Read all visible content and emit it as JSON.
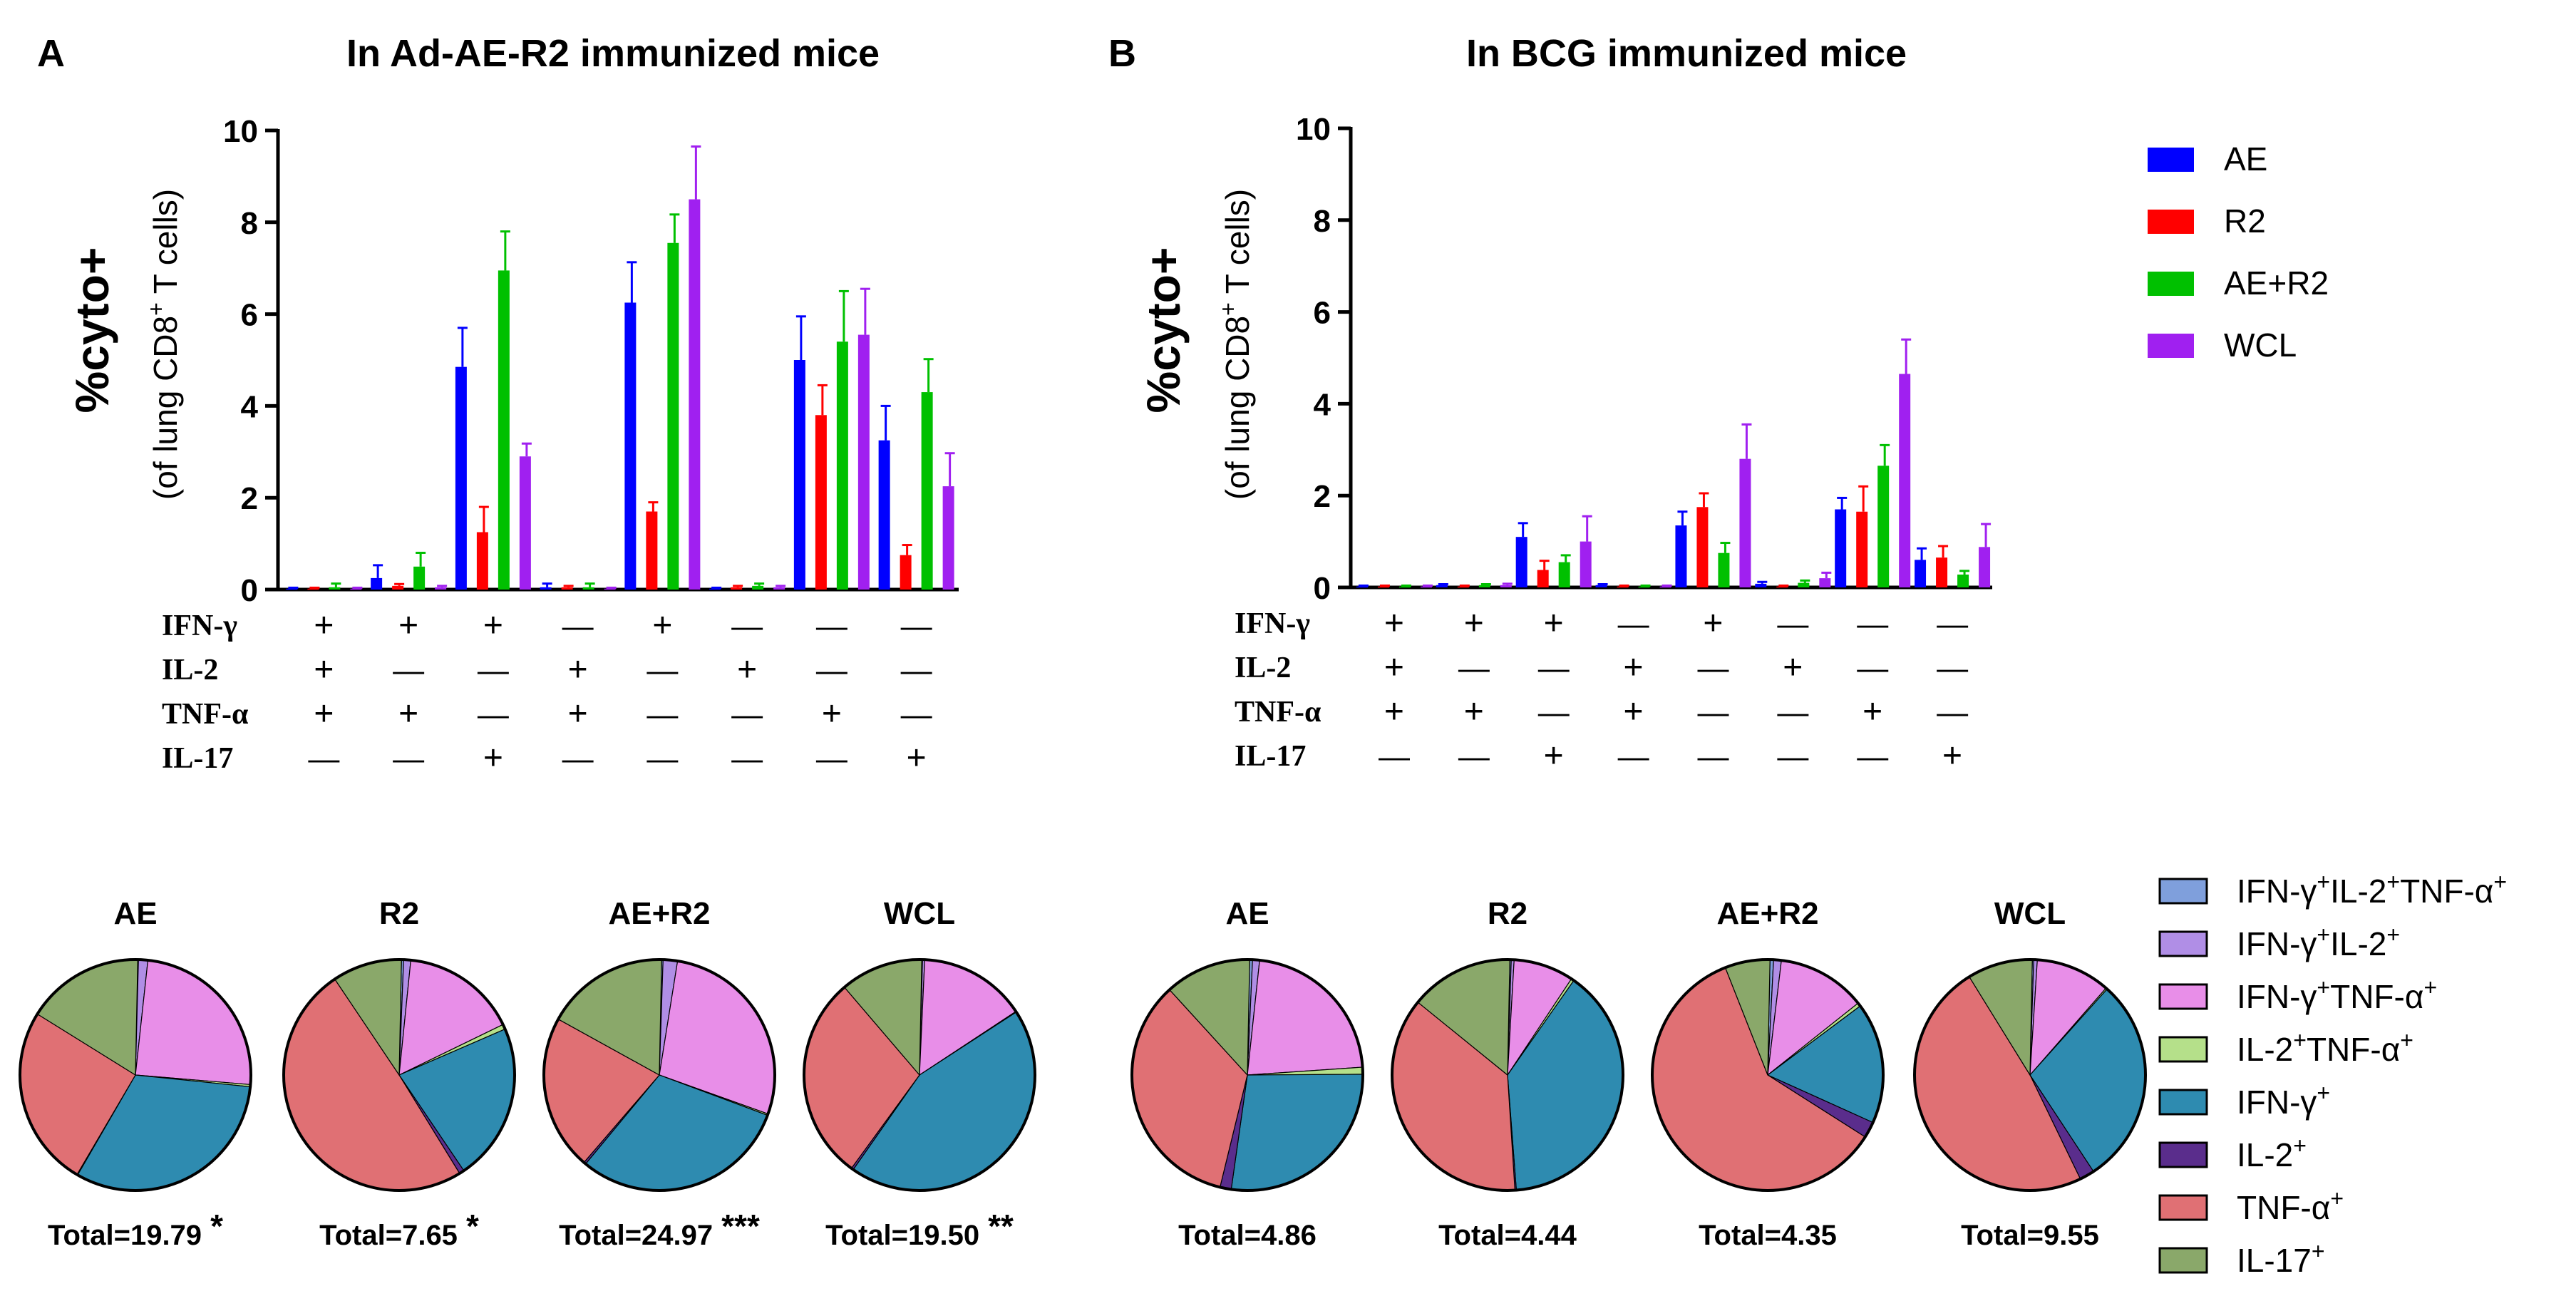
{
  "panels": [
    {
      "label": "A",
      "title": "In Ad-AE-R2 immunized mice",
      "ylabel_main": "%cyto+",
      "ylabel_sub": "(of lung CD8",
      "ylabel_sup": "+",
      "ylabel_end": " T cells)"
    },
    {
      "label": "B",
      "title": "In BCG immunized mice",
      "ylabel_main": "%cyto+",
      "ylabel_sub": "(of lung CD8",
      "ylabel_sup": "+",
      "ylabel_end": " T cells)"
    }
  ],
  "marker_rows": [
    "IFN-γ",
    "IL-2",
    "TNF-α",
    "IL-17"
  ],
  "marker_patterns": [
    [
      "+",
      "+",
      "+",
      "—"
    ],
    [
      "+",
      "—",
      "+",
      "—"
    ],
    [
      "+",
      "—",
      "—",
      "+"
    ],
    [
      "—",
      "+",
      "+",
      "—"
    ],
    [
      "+",
      "—",
      "—",
      "—"
    ],
    [
      "—",
      "+",
      "—",
      "—"
    ],
    [
      "—",
      "—",
      "+",
      "—"
    ],
    [
      "—",
      "—",
      "—",
      "+"
    ]
  ],
  "colors": {
    "AE": "#0000ff",
    "R2": "#ff0000",
    "AE+R2": "#00c000",
    "WCL": "#a020f0",
    "pie": [
      "#7f9fdc",
      "#b08ee6",
      "#e88ee8",
      "#b5e08a",
      "#2e8bb0",
      "#5a2d8c",
      "#e07074",
      "#8aa86a"
    ]
  },
  "chart_data": [
    {
      "type": "bar",
      "panel": "A",
      "title": "In Ad-AE-R2 immunized mice",
      "ylabel": "%cyto+ (of lung CD8+ T cells)",
      "ylim": [
        0,
        10
      ],
      "yticks": [
        "0",
        "2",
        "4",
        "6",
        "8",
        "10"
      ],
      "categories": [
        "IFN-γ+IL-2+TNF-α+",
        "IFN-γ+IL-2+",
        "IFN-γ+TNF-α+",
        "IL-2+TNF-α+",
        "IFN-γ+",
        "IL-2+",
        "TNF-α+",
        "IL-17+"
      ],
      "series": [
        {
          "name": "AE",
          "values": [
            0.02,
            0.25,
            4.85,
            0.05,
            6.25,
            0.02,
            5.0,
            3.25
          ],
          "errors": [
            0.02,
            0.28,
            0.85,
            0.08,
            0.88,
            0.02,
            0.95,
            0.75
          ]
        },
        {
          "name": "R2",
          "values": [
            0.02,
            0.08,
            1.25,
            0.05,
            1.7,
            0.05,
            3.8,
            0.75
          ],
          "errors": [
            0.02,
            0.04,
            0.55,
            0.03,
            0.2,
            0.03,
            0.65,
            0.22
          ]
        },
        {
          "name": "AE+R2",
          "values": [
            0.05,
            0.5,
            6.95,
            0.05,
            7.55,
            0.08,
            5.4,
            4.3
          ],
          "errors": [
            0.08,
            0.3,
            0.85,
            0.08,
            0.62,
            0.05,
            1.1,
            0.72
          ]
        },
        {
          "name": "WCL",
          "values": [
            0.02,
            0.05,
            2.9,
            0.02,
            8.5,
            0.05,
            5.55,
            2.25
          ],
          "errors": [
            0.02,
            0.03,
            0.28,
            0.02,
            1.15,
            0.03,
            1.0,
            0.72
          ]
        }
      ]
    },
    {
      "type": "bar",
      "panel": "B",
      "title": "In BCG immunized mice",
      "ylabel": "%cyto+ (of lung CD8+ T cells)",
      "ylim": [
        0,
        10
      ],
      "yticks": [
        "0",
        "2",
        "4",
        "6",
        "8",
        "10"
      ],
      "categories": [
        "IFN-γ+IL-2+TNF-α+",
        "IFN-γ+IL-2+",
        "IFN-γ+TNF-α+",
        "IL-2+TNF-α+",
        "IFN-γ+",
        "IL-2+",
        "TNF-α+",
        "IL-17+"
      ],
      "series": [
        {
          "name": "AE",
          "values": [
            0.02,
            0.05,
            1.1,
            0.05,
            1.35,
            0.08,
            1.7,
            0.6
          ],
          "errors": [
            0.02,
            0.02,
            0.3,
            0.02,
            0.3,
            0.04,
            0.25,
            0.25
          ]
        },
        {
          "name": "R2",
          "values": [
            0.02,
            0.02,
            0.38,
            0.02,
            1.75,
            0.02,
            1.65,
            0.65
          ],
          "errors": [
            0.02,
            0.02,
            0.2,
            0.02,
            0.3,
            0.02,
            0.55,
            0.25
          ]
        },
        {
          "name": "AE+R2",
          "values": [
            0.02,
            0.05,
            0.55,
            0.02,
            0.75,
            0.1,
            2.65,
            0.28
          ],
          "errors": [
            0.02,
            0.02,
            0.15,
            0.02,
            0.22,
            0.05,
            0.45,
            0.08
          ]
        },
        {
          "name": "WCL",
          "values": [
            0.02,
            0.05,
            1.0,
            0.02,
            2.8,
            0.2,
            4.65,
            0.88
          ],
          "errors": [
            0.02,
            0.03,
            0.55,
            0.02,
            0.75,
            0.12,
            0.75,
            0.5
          ]
        }
      ]
    },
    {
      "type": "pie",
      "panel": "A",
      "labels": [
        "AE",
        "R2",
        "AE+R2",
        "WCL"
      ],
      "totals": [
        "Total=19.79",
        "Total=7.65",
        "Total=24.97",
        "Total=19.50"
      ],
      "stars": [
        "*",
        "*",
        "***",
        "**"
      ],
      "slice_order": [
        "IFN-γ+IL-2+TNF-α+",
        "IFN-γ+IL-2+",
        "IFN-γ+TNF-α+",
        "IL-2+TNF-α+",
        "IFN-γ+",
        "IL-2+",
        "TNF-α+",
        "IL-17+"
      ],
      "slices": [
        [
          0.1,
          1.3,
          24.5,
          0.3,
          31.6,
          0.1,
          25.3,
          16.4
        ],
        [
          0.3,
          1.0,
          16.3,
          0.7,
          22.2,
          0.7,
          49.7,
          9.8
        ],
        [
          0.2,
          2.0,
          27.8,
          0.2,
          30.2,
          0.3,
          21.6,
          17.2
        ],
        [
          0.1,
          0.3,
          14.9,
          0.1,
          43.6,
          0.3,
          28.5,
          11.5
        ]
      ]
    },
    {
      "type": "pie",
      "panel": "B",
      "labels": [
        "AE",
        "R2",
        "AE+R2",
        "WCL"
      ],
      "totals": [
        "Total=4.86",
        "Total=4.44",
        "Total=4.35",
        "Total=9.55"
      ],
      "stars": [
        "",
        "",
        "",
        ""
      ],
      "slice_order": [
        "IFN-γ+IL-2+TNF-α+",
        "IFN-γ+IL-2+",
        "IFN-γ+TNF-α+",
        "IL-2+TNF-α+",
        "IFN-γ+",
        "IL-2+",
        "TNF-α+",
        "IL-17+"
      ],
      "slices": [
        [
          0.4,
          1.0,
          22.6,
          1.0,
          27.8,
          1.6,
          35.0,
          12.3
        ],
        [
          0.2,
          0.4,
          8.5,
          0.4,
          39.4,
          0.2,
          37.2,
          14.6
        ],
        [
          0.5,
          1.1,
          12.6,
          0.5,
          17.2,
          2.3,
          60.9,
          6.4
        ],
        [
          0.2,
          0.5,
          10.5,
          0.2,
          29.3,
          2.1,
          48.7,
          9.2
        ]
      ]
    }
  ],
  "bar_legend": [
    "AE",
    "R2",
    "AE+R2",
    "WCL"
  ],
  "pie_legend": [
    {
      "base": "IFN-γ",
      "parts": [
        [
          "IFN-γ",
          "+"
        ],
        [
          "IL-2",
          "+"
        ],
        [
          "TNF-α",
          "+"
        ]
      ]
    },
    {
      "base": "IFN-γ",
      "parts": [
        [
          "IFN-γ",
          "+"
        ],
        [
          "IL-2",
          "+"
        ]
      ]
    },
    {
      "base": "IFN-γ",
      "parts": [
        [
          "IFN-γ",
          "+"
        ],
        [
          "TNF-α",
          "+"
        ]
      ]
    },
    {
      "base": "IL-2",
      "parts": [
        [
          "IL-2",
          "+"
        ],
        [
          "TNF-α",
          "+"
        ]
      ]
    },
    {
      "base": "IFN-γ",
      "parts": [
        [
          "IFN-γ",
          "+"
        ]
      ]
    },
    {
      "base": "IL-2",
      "parts": [
        [
          "IL-2",
          "+"
        ]
      ]
    },
    {
      "base": "TNF-α",
      "parts": [
        [
          "TNF-α",
          "+"
        ]
      ]
    },
    {
      "base": "IL-17",
      "parts": [
        [
          "IL-17",
          "+"
        ]
      ]
    }
  ]
}
